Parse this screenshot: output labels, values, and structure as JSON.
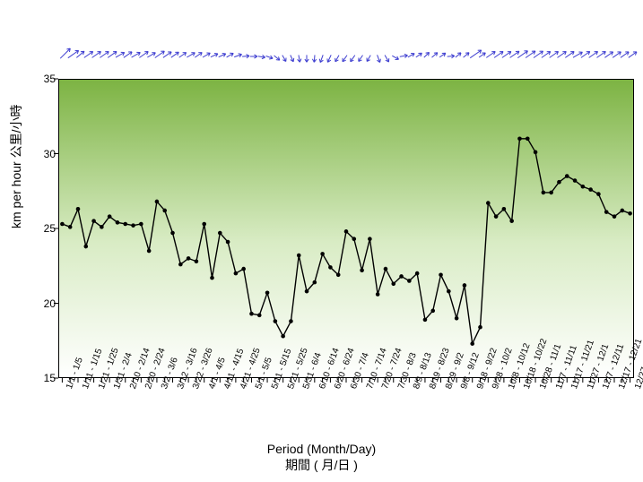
{
  "chart": {
    "type": "line",
    "ylabel": "km per hour 公里/小時",
    "xlabel_line1": "Period  (Month/Day)",
    "xlabel_line2": "期間 ( 月/日 )",
    "ylim": [
      15,
      35
    ],
    "yticks": [
      15,
      20,
      25,
      30,
      35
    ],
    "background_gradient_top": "#7cb342",
    "background_gradient_bottom": "#ffffff",
    "axis_color": "#000000",
    "line_color": "#000000",
    "marker_color": "#000000",
    "marker_size": 2.3,
    "line_width": 1.4,
    "arrow_color": "#3e3ed0",
    "tick_font_size": 12,
    "label_font_size": 14,
    "categories": [
      "1/1 - 1/5",
      "1/6 - 1/10",
      "1/11 - 1/15",
      "1/16 - 1/20",
      "1/21 - 1/25",
      "1/26 - 1/30",
      "1/31 - 2/4",
      "2/5 - 2/9",
      "2/10 - 2/14",
      "2/15 - 2/19",
      "2/20 - 2/24",
      "2/25 - 3/1",
      "3/2 - 3/6",
      "3/7 - 3/11",
      "3/12 - 3/16",
      "3/17 - 3/21",
      "3/22 - 3/26",
      "3/27 - 3/31",
      "4/1 - 4/5",
      "4/6 - 4/10",
      "4/11 - 4/15",
      "4/16 - 4/20",
      "4/21 - 4/25",
      "4/26 - 4/30",
      "5/1 - 5/5",
      "5/6 - 5/10",
      "5/11 - 5/15",
      "5/16 - 5/20",
      "5/21 - 5/25",
      "5/26 - 5/30",
      "5/31 - 6/4",
      "6/5 - 6/9",
      "6/10 - 6/14",
      "6/15 - 6/19",
      "6/20 - 6/24",
      "6/25 - 6/29",
      "6/30 - 7/4",
      "7/5 - 7/9",
      "7/10 - 7/14",
      "7/15 - 7/19",
      "7/20 - 7/24",
      "7/25 - 7/29",
      "7/30 - 8/3",
      "8/4 - 8/8",
      "8/9 - 8/13",
      "8/14 - 8/18",
      "8/19 - 8/23",
      "8/24 - 8/28",
      "8/29 - 9/2",
      "9/3 - 9/7",
      "9/8 - 9/12",
      "9/13 - 9/17",
      "9/18 - 9/22",
      "9/23 - 9/27",
      "9/28 - 10/2",
      "10/3 - 10/7",
      "10/8 - 10/12",
      "10/13 - 10/17",
      "10/18 - 10/22",
      "10/23 - 10/27",
      "10/28 - 11/1",
      "11/2 - 11/6",
      "11/7 - 11/11",
      "11/12 - 11/16",
      "11/17 - 11/21",
      "11/22 - 11/26",
      "11/27 - 12/1",
      "12/2 - 12/6",
      "12/7 - 12/11",
      "12/12 - 12/16",
      "12/17 - 12/21",
      "12/22 - 12/26",
      "12/27 - 12/31"
    ],
    "values": [
      25.3,
      25.1,
      26.3,
      23.8,
      25.5,
      25.1,
      25.8,
      25.4,
      25.3,
      25.2,
      25.3,
      23.5,
      26.8,
      26.2,
      24.7,
      22.6,
      23.0,
      22.8,
      25.3,
      21.7,
      24.7,
      24.1,
      22.0,
      22.3,
      19.3,
      19.2,
      20.7,
      18.8,
      17.8,
      18.8,
      23.2,
      20.8,
      21.4,
      23.3,
      22.4,
      21.9,
      24.8,
      24.3,
      22.2,
      24.3,
      20.6,
      22.3,
      21.3,
      21.8,
      21.5,
      22.0,
      18.9,
      19.5,
      21.9,
      20.8,
      19.0,
      21.2,
      17.3,
      18.4,
      26.7,
      25.8,
      26.3,
      25.5,
      31.0,
      31.0,
      30.1,
      27.4,
      27.4,
      28.1,
      28.5,
      28.2,
      27.8,
      27.6,
      27.3,
      26.1,
      25.8,
      26.2,
      26.0
    ],
    "wind_arrows": {
      "angles_deg": [
        45,
        55,
        50,
        55,
        55,
        55,
        55,
        60,
        55,
        60,
        55,
        60,
        55,
        55,
        55,
        55,
        60,
        55,
        60,
        65,
        65,
        60,
        70,
        85,
        90,
        100,
        110,
        130,
        150,
        155,
        170,
        180,
        185,
        200,
        205,
        210,
        215,
        215,
        215,
        210,
        160,
        150,
        120,
        80,
        60,
        55,
        45,
        50,
        55,
        85,
        50,
        50,
        55,
        55,
        55,
        55,
        55,
        55,
        55,
        55,
        55,
        55,
        55,
        55,
        55,
        60,
        55,
        55,
        55,
        55,
        55,
        55,
        55
      ],
      "lengths_rel": [
        0.98,
        0.9,
        0.7,
        0.75,
        0.75,
        0.75,
        0.75,
        0.7,
        0.7,
        0.7,
        0.75,
        0.65,
        0.8,
        0.7,
        0.65,
        0.6,
        0.65,
        0.6,
        0.6,
        0.55,
        0.55,
        0.55,
        0.55,
        0.5,
        0.5,
        0.5,
        0.5,
        0.5,
        0.5,
        0.5,
        0.5,
        0.5,
        0.5,
        0.55,
        0.55,
        0.52,
        0.55,
        0.55,
        0.52,
        0.5,
        0.55,
        0.55,
        0.52,
        0.55,
        0.52,
        0.5,
        0.5,
        0.52,
        0.5,
        0.5,
        0.5,
        0.52,
        0.95,
        0.55,
        0.75,
        0.75,
        0.75,
        0.78,
        0.85,
        0.82,
        0.8,
        0.75,
        0.75,
        0.75,
        0.75,
        0.75,
        0.75,
        0.75,
        0.75,
        0.7,
        0.7,
        0.7,
        0.7
      ]
    }
  }
}
